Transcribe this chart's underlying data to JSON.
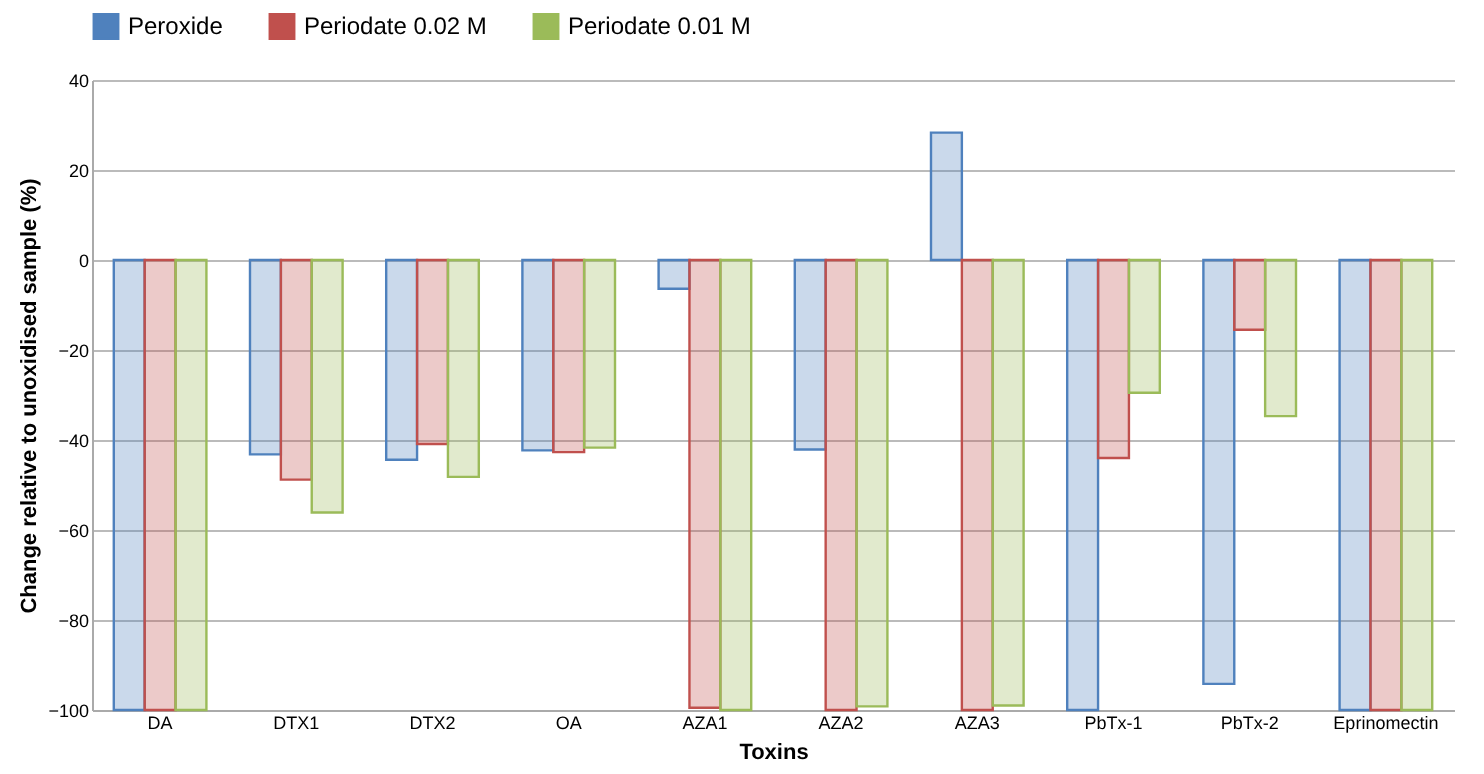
{
  "chart_data": {
    "type": "bar",
    "xlabel": "Toxins",
    "ylabel": "Change relative to unoxidised sample (%)",
    "categories": [
      "DA",
      "DTX1",
      "DTX2",
      "OA",
      "AZA1",
      "AZA2",
      "AZA3",
      "PbTx-1",
      "PbTx-2",
      "Eprinomectin"
    ],
    "series": [
      {
        "name": "Peroxide",
        "color": "#4f81bd",
        "values": [
          -100,
          -43.2,
          -44.4,
          -42.3,
          -6.4,
          -42.1,
          28.3,
          -100,
          -94.2,
          -100
        ]
      },
      {
        "name": "Periodate 0.02 M",
        "color": "#c0504d",
        "values": [
          -100,
          -48.8,
          -40.9,
          -42.7,
          -99.5,
          -100,
          -100,
          -44,
          -15.5,
          -100
        ]
      },
      {
        "name": "Periodate 0.01 M",
        "color": "#9bbb59",
        "values": [
          -100,
          -56.1,
          -48.2,
          -41.7,
          -100,
          -99.2,
          -99,
          -29.5,
          -34.7,
          -100
        ]
      }
    ],
    "ylim": [
      -100,
      40
    ],
    "yticks": [
      -100,
      -80,
      -60,
      -40,
      -20,
      0,
      20,
      40
    ],
    "grid": "y",
    "legend": "top"
  }
}
